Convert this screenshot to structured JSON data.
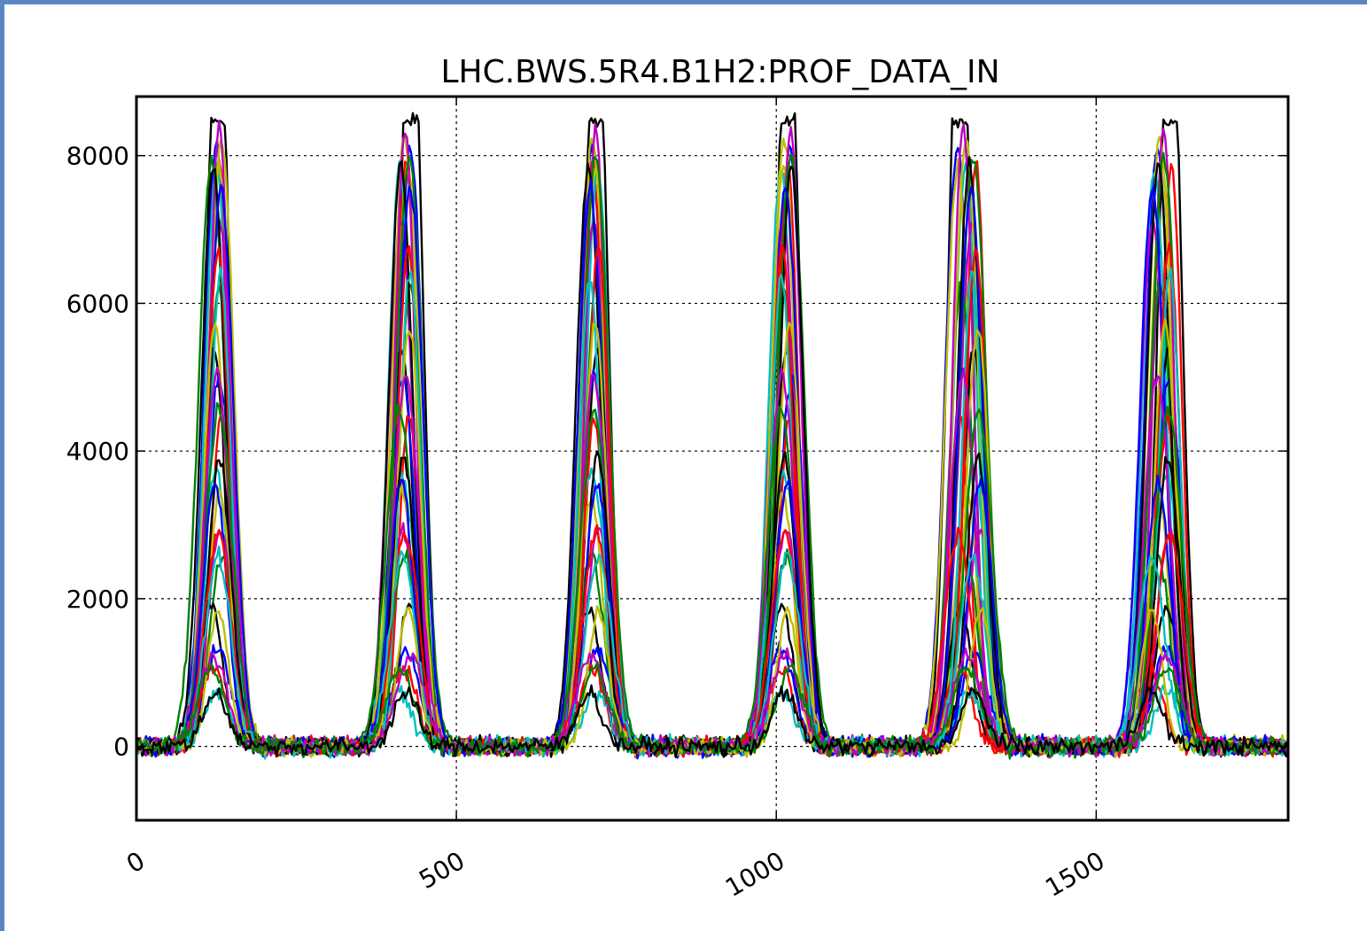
{
  "chart_data": {
    "type": "line",
    "title": "LHC.BWS.5R4.B1H2:PROF_DATA_IN",
    "xlabel": "",
    "ylabel": "",
    "xlim": [
      0,
      1800
    ],
    "ylim": [
      -1000,
      8800
    ],
    "x_ticks": [
      0,
      500,
      1000,
      1500
    ],
    "x_tick_labels": [
      "0",
      "500",
      "1000",
      "1500"
    ],
    "y_ticks": [
      0,
      2000,
      4000,
      6000,
      8000
    ],
    "y_tick_labels": [
      "0",
      "2000",
      "4000",
      "6000",
      "8000"
    ],
    "grid": true,
    "legend": "none",
    "peak_centers": [
      125,
      420,
      715,
      1015,
      1300,
      1600
    ],
    "peak_amplitudes": [
      8700,
      8650,
      8600,
      8100,
      7900,
      7300,
      6500,
      5800,
      5200,
      4600,
      4000,
      3600,
      3100,
      2600,
      2000,
      1300,
      1100,
      800
    ],
    "noise_amplitude": 80,
    "colors": [
      "#000000",
      "#0000ff",
      "#ff0000",
      "#00bfbf",
      "#bfbf00",
      "#bf00bf",
      "#008000"
    ]
  }
}
